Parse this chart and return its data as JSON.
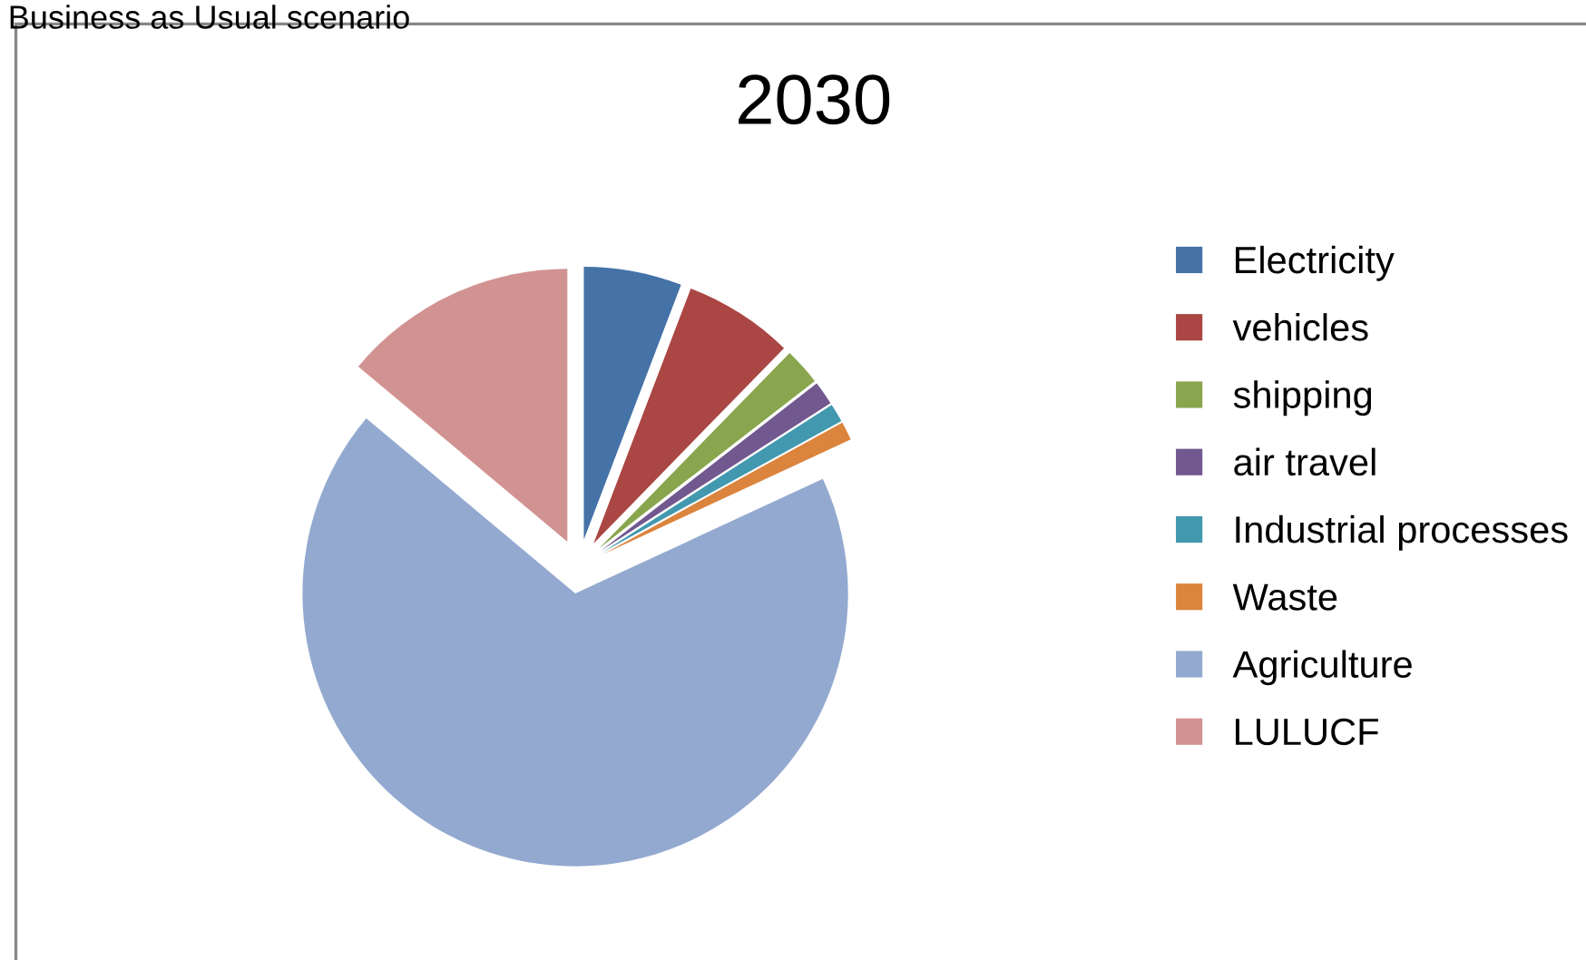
{
  "chart_data": {
    "type": "pie",
    "title": "2030",
    "annotations": [
      "Business as Usual scenario"
    ],
    "categories": [
      "Electricity",
      "vehicles",
      "shipping",
      "air travel",
      "Industrial processes",
      "Waste",
      "Agriculture",
      "LULUCF"
    ],
    "values": [
      5.8,
      6.5,
      2.2,
      1.4,
      1.1,
      1.1,
      68.0,
      13.9
    ],
    "colors": [
      "#4572a7",
      "#aa4643",
      "#89a54e",
      "#71588f",
      "#4198af",
      "#db843d",
      "#93a9cf",
      "#d19392"
    ],
    "legend": "right"
  }
}
